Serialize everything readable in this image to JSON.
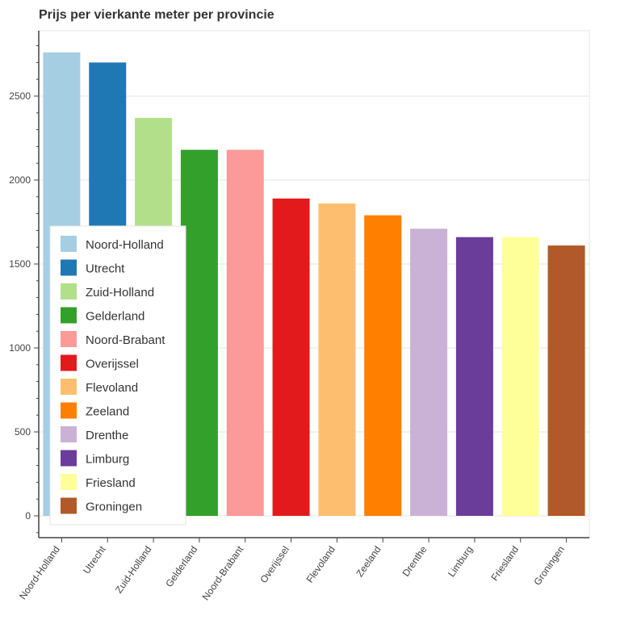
{
  "chart_data": {
    "type": "bar",
    "title": "Prijs per vierkante meter per provincie",
    "xlabel": "",
    "ylabel": "",
    "categories": [
      "Noord-Holland",
      "Utrecht",
      "Zuid-Holland",
      "Gelderland",
      "Noord-Brabant",
      "Overijssel",
      "Flevoland",
      "Zeeland",
      "Drenthe",
      "Limburg",
      "Friesland",
      "Groningen"
    ],
    "values": [
      2760,
      2700,
      2370,
      2180,
      2180,
      1890,
      1860,
      1790,
      1710,
      1660,
      1660,
      1610
    ],
    "colors": [
      "#a6cee3",
      "#1f78b4",
      "#b2df8a",
      "#33a02c",
      "#fb9a99",
      "#e31a1c",
      "#fdbf6f",
      "#ff7f00",
      "#cab2d6",
      "#6a3d9a",
      "#ffff99",
      "#b15928"
    ],
    "yticks": [
      0,
      500,
      1000,
      1500,
      2000,
      2500
    ],
    "ylim": [
      -130,
      2900
    ],
    "grid": true,
    "legend_position": "bottom-left"
  }
}
